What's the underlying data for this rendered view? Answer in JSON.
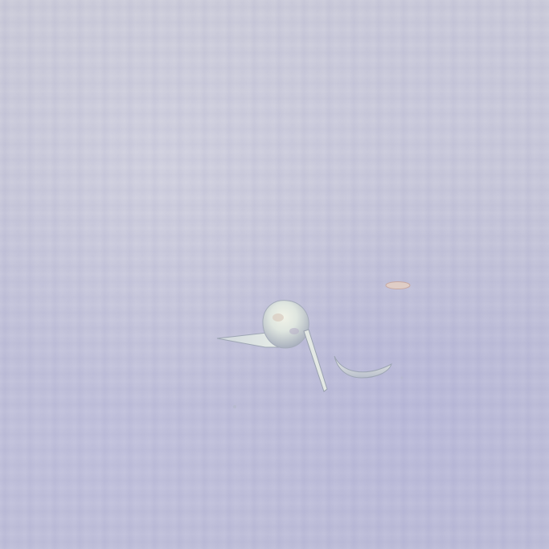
{
  "scene": {
    "description_colors": {
      "background": "#c9c9d9",
      "streak": "#aaaad7",
      "debris": "#e6ecea",
      "debris_shadow": "#9fa6b6",
      "ellipse_accent": "#d9c6c0"
    },
    "objects": [
      {
        "name": "rounded-head-shape"
      },
      {
        "name": "pointed-blade-shape"
      },
      {
        "name": "thin-stalk-shape"
      },
      {
        "name": "curved-crescent-shape"
      },
      {
        "name": "small-ellipse-mark"
      }
    ]
  }
}
